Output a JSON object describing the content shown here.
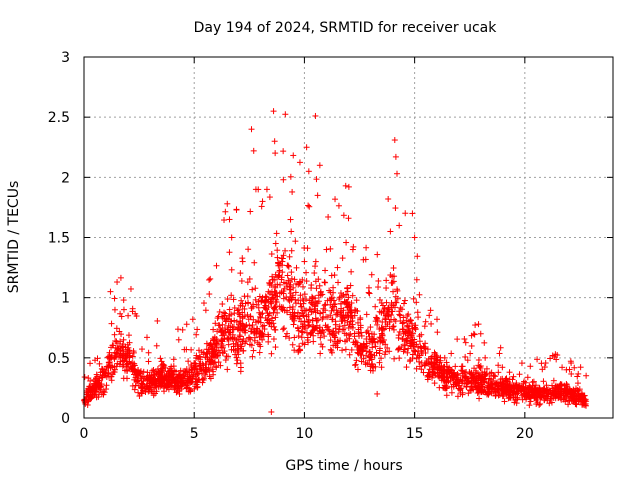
{
  "chart_data": {
    "type": "scatter",
    "title": "Day 194 of 2024, SRMTID for receiver ucak",
    "xlabel": "GPS time / hours",
    "ylabel": "SRMTID / TECUs",
    "xlim": [
      0,
      24
    ],
    "ylim": [
      0,
      3
    ],
    "xticks": [
      0,
      5,
      10,
      15,
      20
    ],
    "yticks": [
      0,
      0.5,
      1,
      1.5,
      2,
      2.5,
      3
    ],
    "xtick_labels": [
      "0",
      "5",
      "10",
      "15",
      "20"
    ],
    "ytick_labels": [
      "0",
      "0.5",
      "1",
      "1.5",
      "2",
      "2.5",
      "3"
    ],
    "grid": true,
    "marker": "+",
    "series": [
      {
        "name": "SRMTID",
        "color": "#ff0000",
        "profile": [
          [
            0.0,
            0.14
          ],
          [
            0.3,
            0.22
          ],
          [
            0.8,
            0.3
          ],
          [
            1.2,
            0.45
          ],
          [
            1.6,
            0.6
          ],
          [
            2.0,
            0.5
          ],
          [
            2.5,
            0.3
          ],
          [
            3.0,
            0.28
          ],
          [
            3.5,
            0.35
          ],
          [
            4.0,
            0.32
          ],
          [
            4.5,
            0.3
          ],
          [
            5.0,
            0.36
          ],
          [
            5.5,
            0.45
          ],
          [
            6.0,
            0.58
          ],
          [
            6.5,
            0.72
          ],
          [
            7.0,
            0.7
          ],
          [
            7.5,
            0.85
          ],
          [
            8.0,
            0.75
          ],
          [
            8.5,
            0.9
          ],
          [
            9.0,
            1.1
          ],
          [
            9.5,
            0.95
          ],
          [
            10.0,
            0.85
          ],
          [
            10.5,
            0.9
          ],
          [
            11.0,
            0.85
          ],
          [
            11.5,
            0.8
          ],
          [
            12.0,
            0.85
          ],
          [
            12.5,
            0.65
          ],
          [
            13.0,
            0.55
          ],
          [
            13.5,
            0.7
          ],
          [
            14.0,
            0.95
          ],
          [
            14.5,
            0.7
          ],
          [
            15.0,
            0.65
          ],
          [
            15.5,
            0.5
          ],
          [
            16.0,
            0.4
          ],
          [
            16.5,
            0.35
          ],
          [
            17.0,
            0.32
          ],
          [
            17.5,
            0.3
          ],
          [
            18.0,
            0.32
          ],
          [
            18.5,
            0.28
          ],
          [
            19.0,
            0.25
          ],
          [
            19.5,
            0.22
          ],
          [
            20.0,
            0.22
          ],
          [
            20.5,
            0.2
          ],
          [
            21.0,
            0.2
          ],
          [
            21.5,
            0.22
          ],
          [
            22.0,
            0.2
          ],
          [
            22.5,
            0.18
          ],
          [
            22.8,
            0.14
          ]
        ],
        "highlights": [
          [
            0.5,
            0.48
          ],
          [
            0.7,
            0.45
          ],
          [
            1.2,
            1.05
          ],
          [
            1.5,
            1.13
          ],
          [
            1.8,
            0.98
          ],
          [
            2.0,
            0.85
          ],
          [
            3.3,
            0.6
          ],
          [
            4.3,
            0.65
          ],
          [
            6.5,
            1.78
          ],
          [
            6.6,
            1.65
          ],
          [
            6.7,
            1.5
          ],
          [
            7.2,
            1.3
          ],
          [
            7.6,
            2.4
          ],
          [
            7.7,
            2.22
          ],
          [
            7.8,
            1.9
          ],
          [
            8.1,
            1.8
          ],
          [
            8.3,
            1.9
          ],
          [
            8.5,
            0.05
          ],
          [
            8.6,
            2.55
          ],
          [
            8.65,
            2.3
          ],
          [
            8.7,
            1.45
          ],
          [
            9.0,
            1.3
          ],
          [
            9.4,
            1.55
          ],
          [
            10.0,
            1.3
          ],
          [
            10.1,
            2.25
          ],
          [
            10.2,
            2.05
          ],
          [
            10.5,
            2.51
          ],
          [
            10.6,
            1.85
          ],
          [
            10.7,
            2.1
          ],
          [
            11.0,
            1.4
          ],
          [
            11.5,
            1.25
          ],
          [
            12.0,
            1.66
          ],
          [
            12.2,
            1.4
          ],
          [
            13.3,
            0.2
          ],
          [
            13.8,
            1.82
          ],
          [
            13.9,
            1.55
          ],
          [
            14.1,
            2.31
          ],
          [
            14.15,
            2.17
          ],
          [
            14.2,
            2.03
          ],
          [
            14.3,
            1.6
          ],
          [
            14.5,
            0.7
          ],
          [
            14.9,
            1.7
          ],
          [
            15.0,
            1.5
          ],
          [
            15.5,
            0.8
          ],
          [
            17.9,
            0.78
          ],
          [
            18.0,
            0.7
          ],
          [
            18.2,
            0.5
          ]
        ]
      }
    ]
  }
}
